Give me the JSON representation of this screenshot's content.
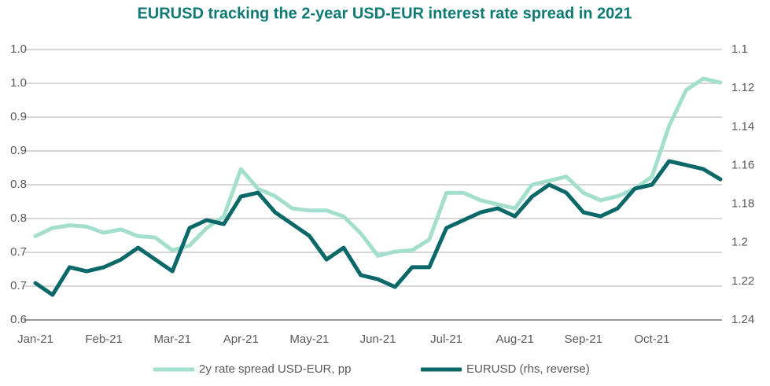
{
  "chart_data": {
    "type": "line",
    "title": "EURUSD tracking the 2-year USD-EUR interest rate spread in 2021",
    "categories": [
      "Jan-21",
      null,
      null,
      null,
      "Feb-21",
      null,
      null,
      null,
      "Mar-21",
      null,
      null,
      null,
      "Apr-21",
      null,
      null,
      null,
      "May-21",
      null,
      null,
      null,
      "Jun-21",
      null,
      null,
      null,
      "Jul-21",
      null,
      null,
      null,
      "Aug-21",
      null,
      null,
      null,
      "Sep-21",
      null,
      null,
      null,
      "Oct-21",
      null,
      null,
      null,
      null
    ],
    "series": [
      {
        "name": "2y rate spread USD-EUR, pp",
        "color": "#a3dfcc",
        "values": [
          0.724,
          0.736,
          0.74,
          0.738,
          0.729,
          0.734,
          0.724,
          0.722,
          0.703,
          0.71,
          0.736,
          0.753,
          0.823,
          0.794,
          0.783,
          0.765,
          0.762,
          0.762,
          0.753,
          0.728,
          0.695,
          0.701,
          0.703,
          0.719,
          0.788,
          0.788,
          0.777,
          0.771,
          0.765,
          0.8,
          0.806,
          0.812,
          0.788,
          0.777,
          0.783,
          0.794,
          0.812,
          0.887,
          0.94,
          0.957,
          0.951
        ]
      },
      {
        "name": "EURUSD (rhs, reverse)",
        "color": "#0b6869",
        "axis": "y2",
        "values": [
          1.2209,
          1.227,
          1.2127,
          1.2148,
          1.2127,
          1.2087,
          1.2026,
          1.2087,
          1.2148,
          1.1924,
          1.1883,
          1.1904,
          1.1761,
          1.1741,
          1.1843,
          1.1904,
          1.1965,
          1.2087,
          1.2026,
          1.2168,
          1.2189,
          1.2229,
          1.2127,
          1.2127,
          1.1924,
          1.1883,
          1.1843,
          1.1822,
          1.1863,
          1.1761,
          1.17,
          1.1741,
          1.1843,
          1.1863,
          1.1822,
          1.172,
          1.17,
          1.1578,
          1.1598,
          1.1619,
          1.1672
        ]
      }
    ],
    "ylim": [
      0.6,
      1.0
    ],
    "yticks": [
      0.6,
      {
        "value": 0.65,
        "label": "0.7"
      },
      0.7,
      {
        "value": 0.75,
        "label": "0.8"
      },
      0.8,
      {
        "value": 0.85,
        "label": "0.9"
      },
      0.9,
      {
        "value": 0.95,
        "label": "1.0"
      },
      {
        "value": 1.0,
        "label": "1.0"
      }
    ],
    "y2lim": [
      1.24,
      1.1
    ],
    "y2ticks": [
      1.1,
      1.12,
      1.14,
      1.16,
      1.18,
      1.2,
      1.22,
      1.24
    ],
    "grid": true,
    "legend": "bottom"
  }
}
